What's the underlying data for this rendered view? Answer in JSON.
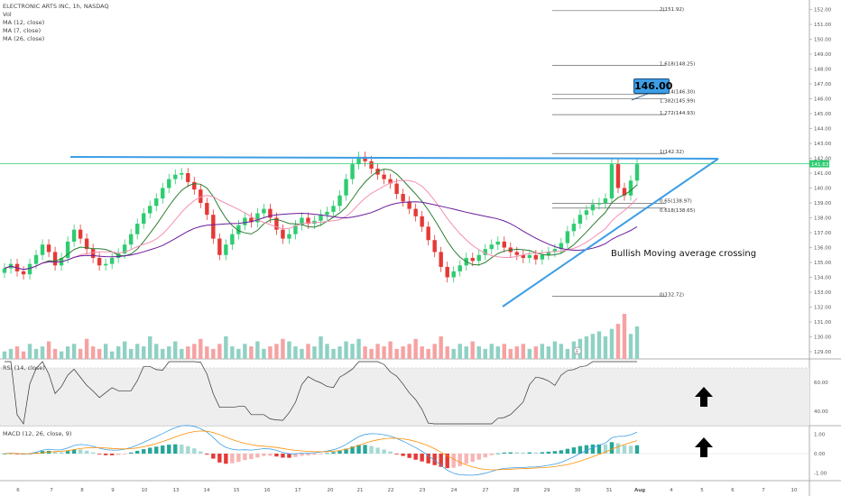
{
  "legend": {
    "title": "ELECTRONIC ARTS INC, 1h, NASDAQ",
    "items": [
      "Vol",
      "MA (12, close)",
      "MA (7, close)",
      "MA (26, close)"
    ]
  },
  "rsi_label": "RSI (14, close)",
  "macd_label": "MACD (12, 26, close, 9)",
  "annotation_text": "Bullish Moving average crossing",
  "price_badge": "146.00",
  "event_marker": "E",
  "colors": {
    "up": "#2ecc71",
    "down": "#e53935",
    "blue_line": "#3d9ee6",
    "ma_fast": "#2e7d32",
    "ma_mid": "#f48fb1",
    "ma_slow": "#6a1b9a",
    "macd_line": "#3d9ee6",
    "signal_line": "#ff8f00"
  },
  "chart_data": {
    "type": "candlestick",
    "x_tick_labels": [
      "6",
      "7",
      "8",
      "9",
      "10",
      "13",
      "14",
      "15",
      "16",
      "17",
      "20",
      "21",
      "22",
      "23",
      "24",
      "27",
      "28",
      "29",
      "30",
      "31",
      "Aug",
      "4",
      "5",
      "6",
      "7",
      "10"
    ],
    "price_axis": {
      "range": [
        128,
        153
      ],
      "tick_labels": [
        "129.00",
        "130.00",
        "131.00",
        "132.00",
        "133.00",
        "134.00",
        "135.00",
        "136.00",
        "137.00",
        "138.00",
        "139.00",
        "140.00",
        "141.00",
        "142.00",
        "143.00",
        "144.00",
        "145.00",
        "146.00",
        "147.00",
        "148.00",
        "149.00",
        "150.00",
        "151.00",
        "152.00"
      ],
      "last_price_label": "141.63"
    },
    "fibonacci_levels": [
      {
        "label": "2(151.92)",
        "value": 151.92
      },
      {
        "label": "1.618(148.25)",
        "value": 148.25
      },
      {
        "label": "1.414(146.30)",
        "value": 146.3
      },
      {
        "label": "1.382(145.99)",
        "value": 145.99
      },
      {
        "label": "1.272(144.93)",
        "value": 144.93
      },
      {
        "label": "1(142.32)",
        "value": 142.32
      },
      {
        "label": "0.65(138.97)",
        "value": 138.97
      },
      {
        "label": "0.618(138.65)",
        "value": 138.65
      },
      {
        "label": "0(132.72)",
        "value": 132.72
      }
    ],
    "resistance_level": 142.0,
    "close_series": [
      134.6,
      134.9,
      134.4,
      134.2,
      134.9,
      135.5,
      136.2,
      135.7,
      134.8,
      135.3,
      136.4,
      137.2,
      136.6,
      135.9,
      135.3,
      134.8,
      134.9,
      135.3,
      135.6,
      136.2,
      136.9,
      137.6,
      138.3,
      138.8,
      139.3,
      140.0,
      140.6,
      140.9,
      141.0,
      140.4,
      139.9,
      139.0,
      138.2,
      136.6,
      135.5,
      136.2,
      136.9,
      137.5,
      138.0,
      137.7,
      138.3,
      138.6,
      138.0,
      137.2,
      136.6,
      136.9,
      137.5,
      138.0,
      137.6,
      137.8,
      138.2,
      138.4,
      138.8,
      139.5,
      140.6,
      141.6,
      142.1,
      141.8,
      141.3,
      140.9,
      140.6,
      140.3,
      139.6,
      139.1,
      138.6,
      138.1,
      137.4,
      136.5,
      135.7,
      134.7,
      134.0,
      134.4,
      134.8,
      135.3,
      135.1,
      135.5,
      135.9,
      136.2,
      136.4,
      136.0,
      135.7,
      135.5,
      135.3,
      135.5,
      135.2,
      135.5,
      135.7,
      135.9,
      136.3,
      137.1,
      137.6,
      138.2,
      138.5,
      138.9,
      139.0,
      139.3,
      141.6,
      140.0,
      139.5,
      140.5,
      141.6
    ],
    "volume_series": [
      3,
      4,
      5,
      3,
      6,
      4,
      5,
      7,
      4,
      3,
      5,
      6,
      4,
      8,
      5,
      4,
      6,
      3,
      5,
      7,
      4,
      6,
      5,
      9,
      6,
      4,
      5,
      7,
      4,
      5,
      6,
      8,
      5,
      4,
      6,
      9,
      5,
      4,
      6,
      5,
      7,
      4,
      5,
      6,
      8,
      7,
      5,
      4,
      6,
      5,
      9,
      6,
      4,
      5,
      7,
      6,
      8,
      5,
      4,
      6,
      5,
      7,
      4,
      5,
      6,
      8,
      5,
      4,
      6,
      9,
      5,
      4,
      6,
      5,
      7,
      5,
      4,
      6,
      5,
      6,
      4,
      5,
      6,
      4,
      5,
      6,
      5,
      7,
      6,
      4,
      7,
      8,
      9,
      10,
      11,
      9,
      12,
      14,
      18,
      10,
      13
    ],
    "rsi": {
      "range": [
        30,
        75
      ],
      "tick_labels": [
        "40.00",
        "60.00"
      ]
    },
    "macd": {
      "range": [
        -1.4,
        1.4
      ],
      "tick_labels": [
        "-1.00",
        "0.00",
        "1.00"
      ]
    }
  }
}
